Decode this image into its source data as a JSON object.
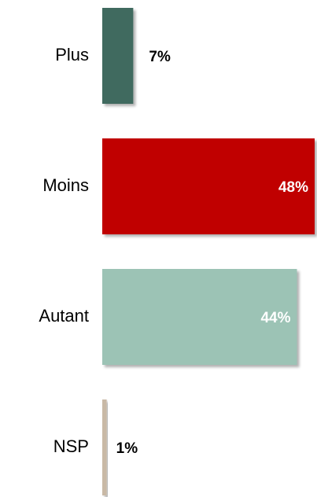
{
  "chart_data": {
    "type": "bar",
    "orientation": "horizontal",
    "categories": [
      "Plus",
      "Moins",
      "Autant",
      "NSP"
    ],
    "values": [
      7,
      48,
      44,
      1
    ],
    "value_labels": [
      "7%",
      "48%",
      "44%",
      "1%"
    ],
    "colors": [
      "#3f6b5e",
      "#c00000",
      "#9cc3b5",
      "#c9b9a6"
    ]
  }
}
